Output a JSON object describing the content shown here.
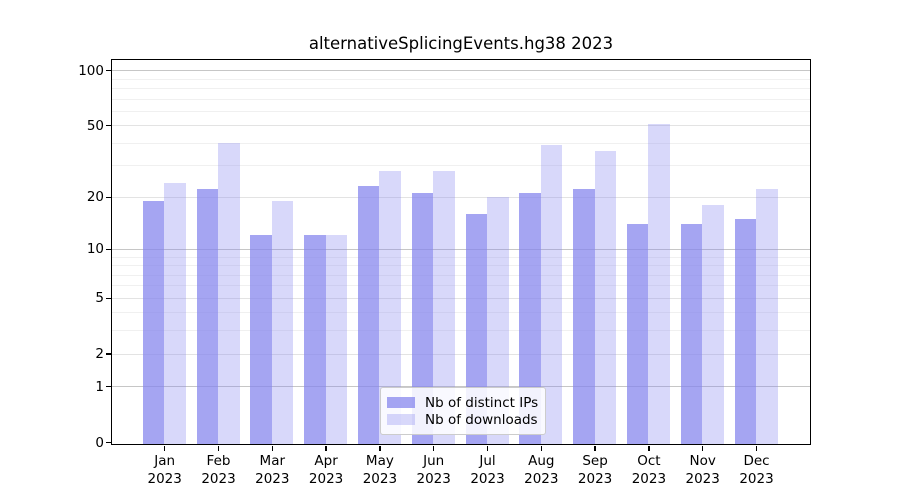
{
  "chart_data": {
    "type": "bar",
    "title": "alternativeSplicingEvents.hg38 2023",
    "categories": [
      "Jan",
      "Feb",
      "Mar",
      "Apr",
      "May",
      "Jun",
      "Jul",
      "Aug",
      "Sep",
      "Oct",
      "Nov",
      "Dec"
    ],
    "year_label": "2023",
    "series": [
      {
        "name": "Nb of distinct IPs",
        "color": "#8686ee",
        "alpha": 0.74,
        "values": [
          19,
          22,
          12,
          12,
          23,
          21,
          16,
          21,
          22,
          14,
          14,
          15
        ]
      },
      {
        "name": "Nb of downloads",
        "color": "#8686ee",
        "alpha": 0.32,
        "values": [
          24,
          40,
          19,
          12,
          28,
          28,
          20,
          39,
          36,
          51,
          18,
          22
        ]
      }
    ],
    "yscale": "log1p",
    "yticks": [
      100,
      50,
      20,
      10,
      5,
      2,
      1,
      0
    ],
    "ylim": [
      0,
      113
    ],
    "xlabel": "",
    "ylabel": "",
    "grid": true,
    "legend_position": "lower center"
  }
}
